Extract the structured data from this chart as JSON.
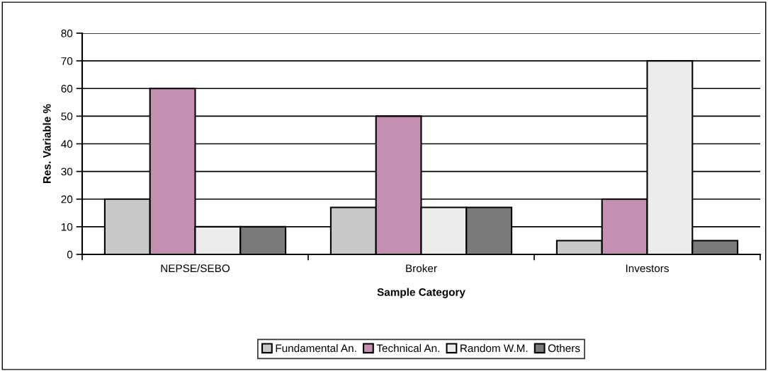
{
  "chart_data": {
    "type": "bar",
    "xlabel": "Sample Category",
    "ylabel": "Res. Variable %",
    "categories": [
      "NEPSE/SEBO",
      "Broker",
      "Investors"
    ],
    "series": [
      {
        "name": "Fundamental An.",
        "color": "#c8c8c8",
        "values": [
          20,
          17,
          5
        ]
      },
      {
        "name": "Technical An.",
        "color": "#c48fb0",
        "values": [
          60,
          50,
          20
        ]
      },
      {
        "name": "Random W.M.",
        "color": "#ececec",
        "values": [
          10,
          17,
          70
        ]
      },
      {
        "name": "Others",
        "color": "#7a7a7a",
        "values": [
          10,
          17,
          5
        ]
      }
    ],
    "ylim": [
      0,
      80
    ],
    "yticks": [
      0,
      10,
      20,
      30,
      40,
      50,
      60,
      70,
      80
    ],
    "grid": "y",
    "legend": "bottom"
  }
}
